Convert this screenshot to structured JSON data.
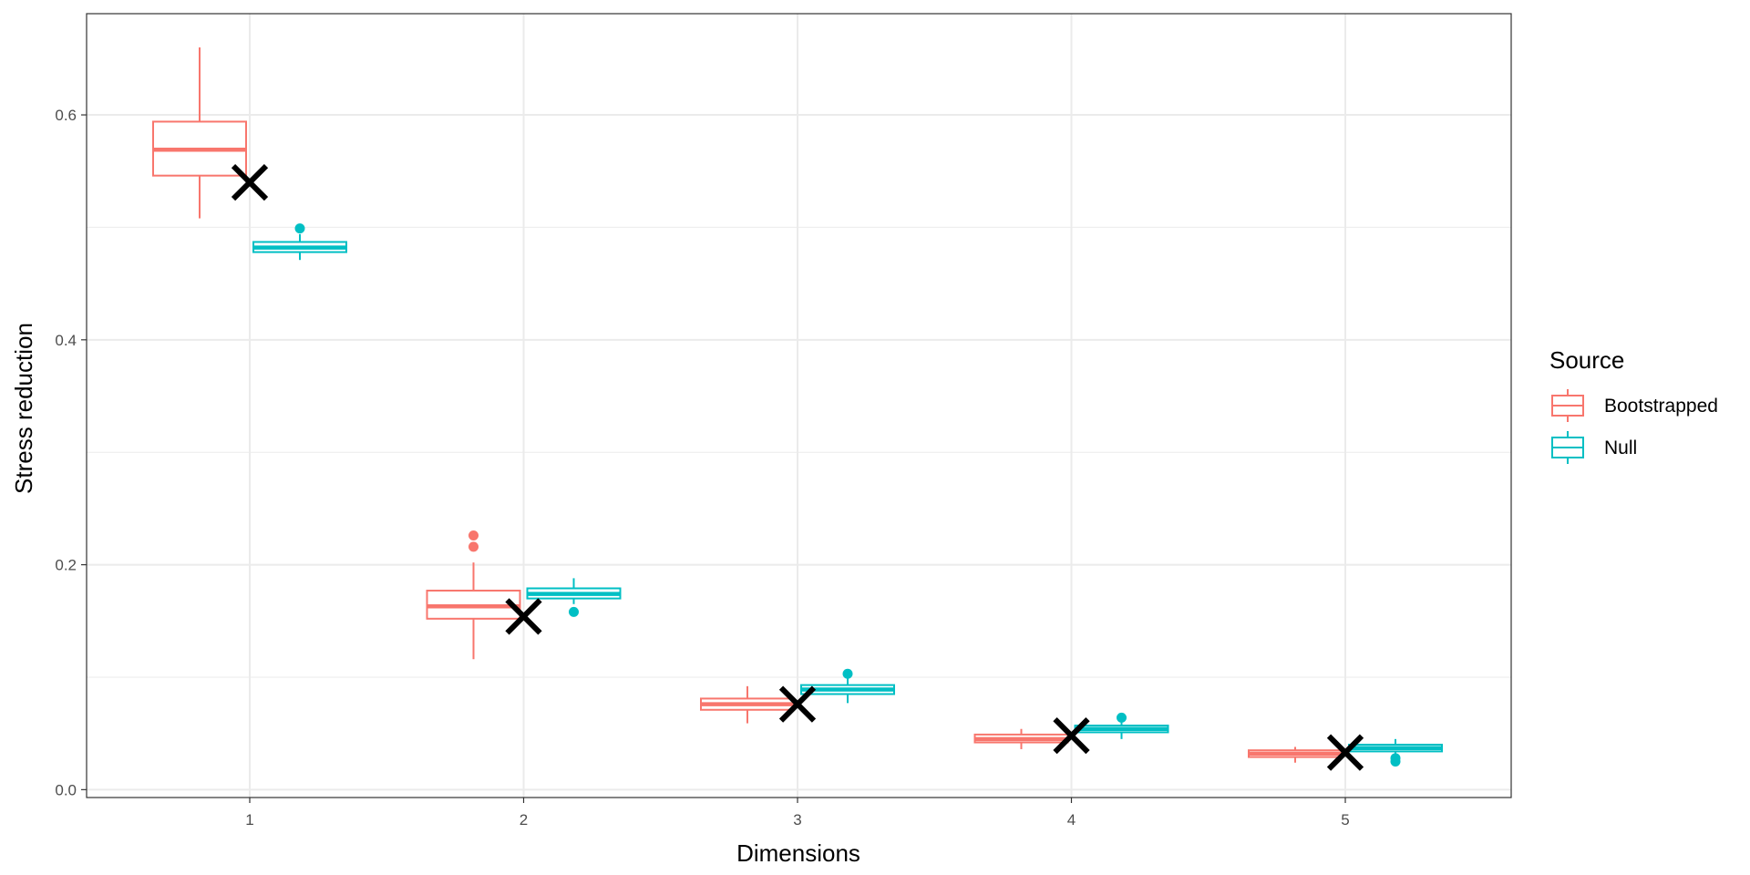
{
  "chart_data": {
    "type": "boxplot",
    "xlabel": "Dimensions",
    "ylabel": "Stress reduction",
    "categories": [
      "1",
      "2",
      "3",
      "4",
      "5"
    ],
    "ylim": [
      -0.007,
      0.69
    ],
    "yticks": [
      0.0,
      0.2,
      0.4,
      0.6
    ],
    "ytick_labels": [
      "0.0",
      "0.2",
      "0.4",
      "0.6"
    ],
    "grid": true,
    "legend": {
      "title": "Source",
      "placement": "right"
    },
    "colors": {
      "Bootstrapped": "#F8766D",
      "Null": "#00BFC4",
      "observed": "#000000"
    },
    "series": [
      {
        "name": "Bootstrapped",
        "boxes": [
          {
            "category": "1",
            "whisker_low": 0.508,
            "q1": 0.546,
            "median": 0.569,
            "q3": 0.594,
            "whisker_high": 0.66,
            "outliers": []
          },
          {
            "category": "2",
            "whisker_low": 0.116,
            "q1": 0.152,
            "median": 0.163,
            "q3": 0.177,
            "whisker_high": 0.202,
            "outliers": [
              0.226,
              0.216
            ]
          },
          {
            "category": "3",
            "whisker_low": 0.059,
            "q1": 0.071,
            "median": 0.076,
            "q3": 0.081,
            "whisker_high": 0.092,
            "outliers": []
          },
          {
            "category": "4",
            "whisker_low": 0.036,
            "q1": 0.042,
            "median": 0.045,
            "q3": 0.049,
            "whisker_high": 0.054,
            "outliers": []
          },
          {
            "category": "5",
            "whisker_low": 0.024,
            "q1": 0.029,
            "median": 0.032,
            "q3": 0.035,
            "whisker_high": 0.038,
            "outliers": []
          }
        ]
      },
      {
        "name": "Null",
        "boxes": [
          {
            "category": "1",
            "whisker_low": 0.471,
            "q1": 0.478,
            "median": 0.482,
            "q3": 0.487,
            "whisker_high": 0.494,
            "outliers": [
              0.499
            ]
          },
          {
            "category": "2",
            "whisker_low": 0.165,
            "q1": 0.17,
            "median": 0.174,
            "q3": 0.179,
            "whisker_high": 0.188,
            "outliers": [
              0.158
            ]
          },
          {
            "category": "3",
            "whisker_low": 0.077,
            "q1": 0.085,
            "median": 0.089,
            "q3": 0.093,
            "whisker_high": 0.1,
            "outliers": [
              0.103
            ]
          },
          {
            "category": "4",
            "whisker_low": 0.045,
            "q1": 0.051,
            "median": 0.054,
            "q3": 0.057,
            "whisker_high": 0.061,
            "outliers": [
              0.064
            ]
          },
          {
            "category": "5",
            "whisker_low": 0.03,
            "q1": 0.034,
            "median": 0.037,
            "q3": 0.04,
            "whisker_high": 0.045,
            "outliers": [
              0.028,
              0.025
            ]
          }
        ]
      }
    ],
    "observed_markers": {
      "symbol": "X",
      "values": [
        {
          "category": "1",
          "y": 0.54
        },
        {
          "category": "2",
          "y": 0.154
        },
        {
          "category": "3",
          "y": 0.076
        },
        {
          "category": "4",
          "y": 0.048
        },
        {
          "category": "5",
          "y": 0.033
        }
      ]
    }
  }
}
